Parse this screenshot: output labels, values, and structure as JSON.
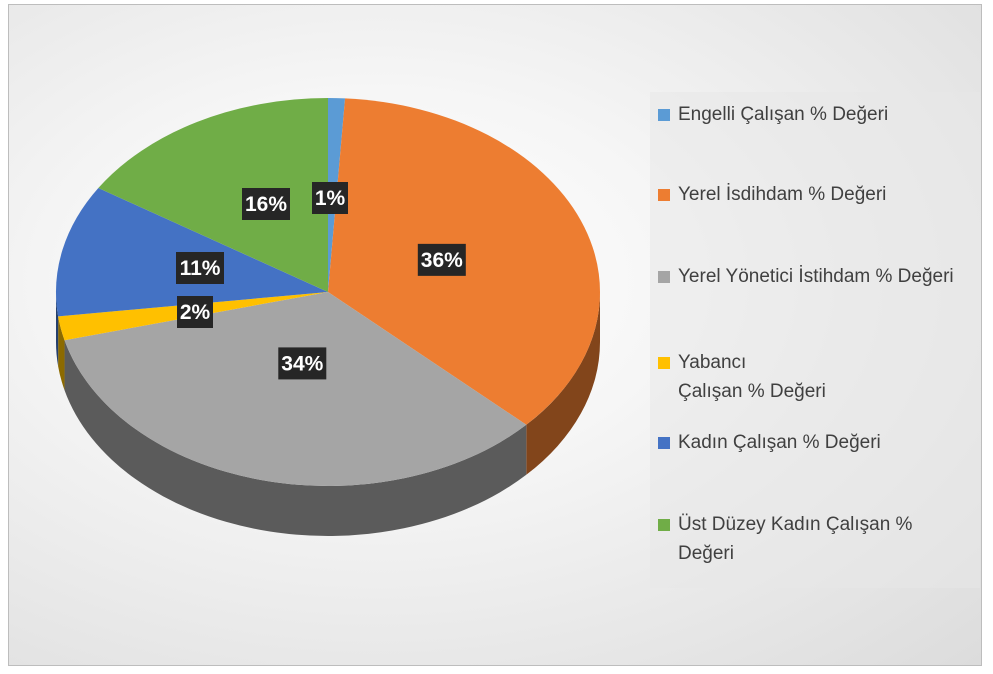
{
  "chart_data": {
    "type": "pie",
    "title": "",
    "slices": [
      {
        "name": "Engelli Çalışan % Değeri",
        "value": 1,
        "label": "1%",
        "color": "#5B9BD5"
      },
      {
        "name": "Yerel İsdihdam % Değeri",
        "value": 36,
        "label": "36%",
        "color": "#ED7D31"
      },
      {
        "name": "Yerel Yönetici İstihdam % Değeri",
        "value": 34,
        "label": "34%",
        "color": "#A5A5A5"
      },
      {
        "name": "Yabancı\nÇalışan  % Değeri",
        "value": 2,
        "label": "2%",
        "color": "#FFC000"
      },
      {
        "name": "Kadın Çalışan % Değeri",
        "value": 11,
        "label": "11%",
        "color": "#4472C4"
      },
      {
        "name": "Üst Düzey Kadın Çalışan % Değeri",
        "value": 16,
        "label": "16%",
        "color": "#70AD47"
      }
    ],
    "legend_position": "right",
    "style": "3d-pie"
  }
}
